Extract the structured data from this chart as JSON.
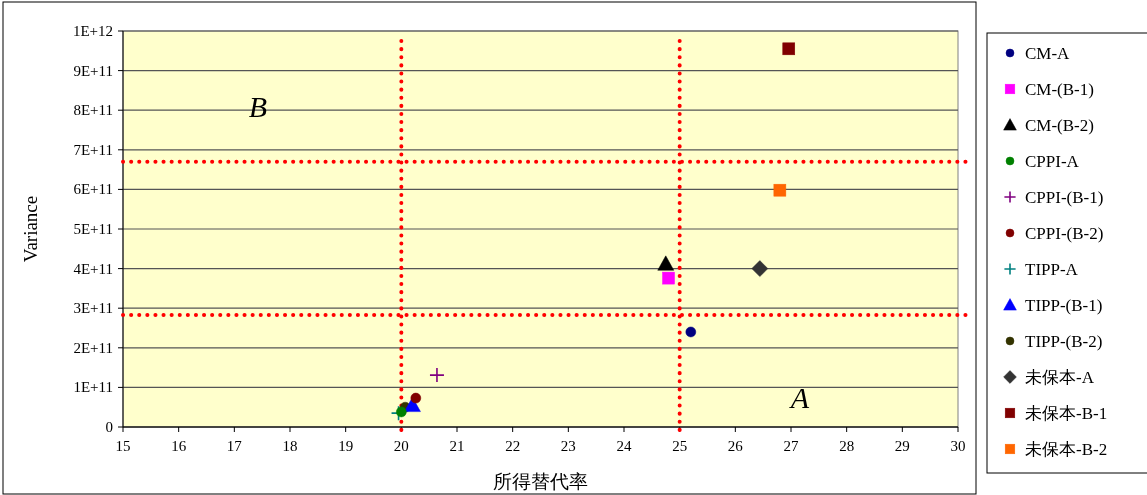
{
  "chart_data": {
    "type": "scatter",
    "xlabel": "所得替代率",
    "ylabel": "Variance",
    "xlim": [
      15,
      30
    ],
    "xticks": [
      15,
      16,
      17,
      18,
      19,
      20,
      21,
      22,
      23,
      24,
      25,
      26,
      27,
      28,
      29,
      30
    ],
    "ylim": [
      0,
      1000000000000
    ],
    "yticks": [
      0,
      {
        "value": 100000000000,
        "label": "1E+11"
      },
      {
        "value": 200000000000,
        "label": "2E+11"
      },
      {
        "value": 300000000000,
        "label": "3E+11"
      },
      {
        "value": 400000000000,
        "label": "4E+11"
      },
      {
        "value": 500000000000,
        "label": "5E+11"
      },
      {
        "value": 600000000000,
        "label": "6E+11"
      },
      {
        "value": 700000000000,
        "label": "7E+11"
      },
      {
        "value": 800000000000,
        "label": "8E+11"
      },
      {
        "value": 900000000000,
        "label": "9E+11"
      },
      {
        "value": 1000000000000,
        "label": "1E+12"
      }
    ],
    "grid": "y",
    "legend": "right",
    "series": [
      {
        "name": "CM-A",
        "color": "#000080",
        "marker": "circle",
        "x": [
          25.2
        ],
        "values": [
          240000000000
        ]
      },
      {
        "name": "CM-(B-1)",
        "color": "#ff00ff",
        "marker": "square",
        "x": [
          24.8
        ],
        "values": [
          376000000000
        ]
      },
      {
        "name": "CM-(B-2)",
        "color": "#000000",
        "marker": "triangle",
        "x": [
          24.75
        ],
        "values": [
          412000000000
        ]
      },
      {
        "name": "CPPI-A",
        "color": "#008000",
        "marker": "circle",
        "x": [
          20.0
        ],
        "values": [
          38000000000
        ]
      },
      {
        "name": "CPPI-(B-1)",
        "color": "#800080",
        "marker": "cross",
        "x": [
          20.64
        ],
        "values": [
          131000000000
        ]
      },
      {
        "name": "CPPI-(B-2)",
        "color": "#800000",
        "marker": "circle",
        "x": [
          20.26
        ],
        "values": [
          73000000000
        ]
      },
      {
        "name": "TIPP-A",
        "color": "#008080",
        "marker": "cross",
        "x": [
          19.95
        ],
        "values": [
          35000000000
        ]
      },
      {
        "name": "TIPP-(B-1)",
        "color": "#0000ff",
        "marker": "triangle",
        "x": [
          20.2
        ],
        "values": [
          55000000000
        ]
      },
      {
        "name": "TIPP-(B-2)",
        "color": "#333300",
        "marker": "circle",
        "x": [
          20.07
        ],
        "values": [
          50000000000
        ]
      },
      {
        "name": "未保本-A",
        "color": "#333333",
        "marker": "diamond",
        "x": [
          26.44
        ],
        "values": [
          400000000000
        ]
      },
      {
        "name": "未保本-B-1",
        "color": "#800000",
        "marker": "square",
        "x": [
          26.96
        ],
        "values": [
          955000000000
        ]
      },
      {
        "name": "未保本-B-2",
        "color": "#ff6600",
        "marker": "square",
        "x": [
          26.8
        ],
        "values": [
          598000000000
        ]
      }
    ],
    "ref_lines": [
      {
        "axis": "x",
        "value": 20,
        "color": "#ff0000",
        "line_style": "dotted"
      },
      {
        "axis": "x",
        "value": 25,
        "color": "#ff0000",
        "line_style": "dotted"
      },
      {
        "axis": "y",
        "value": 670000000000,
        "color": "#ff0000",
        "line_style": "dotted"
      },
      {
        "axis": "y",
        "value": 283000000000,
        "color": "#ff0000",
        "line_style": "dotted"
      }
    ],
    "annotations": [
      "*B*",
      "*A*"
    ]
  }
}
